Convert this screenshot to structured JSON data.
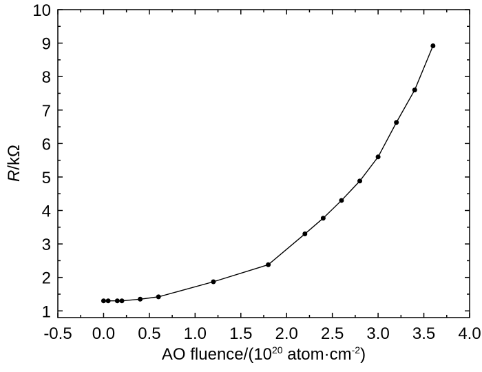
{
  "chart_data": {
    "type": "line",
    "title": "",
    "xlabel_prefix": "AO fluence/(10",
    "xlabel_sup1": "20",
    "xlabel_mid": " atom·cm",
    "xlabel_sup2": "-2",
    "xlabel_suffix": ")",
    "ylabel_italic": "R",
    "ylabel_rest": "/kΩ",
    "xlim": [
      -0.5,
      4.0
    ],
    "ylim": [
      0.8,
      10
    ],
    "x_ticks": [
      "-0.5",
      "0.0",
      "0.5",
      "1.0",
      "1.5",
      "2.0",
      "2.5",
      "3.0",
      "3.5",
      "4.0"
    ],
    "y_ticks": [
      "1",
      "2",
      "3",
      "4",
      "5",
      "6",
      "7",
      "8",
      "9",
      "10"
    ],
    "grid": false,
    "legend": "none",
    "series": [
      {
        "color": "#000000",
        "marker": "circle",
        "x": [
          0.0,
          0.05,
          0.15,
          0.2,
          0.4,
          0.6,
          1.2,
          1.8,
          2.2,
          2.4,
          2.6,
          2.8,
          3.0,
          3.2,
          3.4,
          3.6
        ],
        "y": [
          1.3,
          1.3,
          1.3,
          1.3,
          1.35,
          1.42,
          1.87,
          2.38,
          3.3,
          3.77,
          4.3,
          4.88,
          5.6,
          6.63,
          7.6,
          8.92
        ]
      }
    ]
  }
}
